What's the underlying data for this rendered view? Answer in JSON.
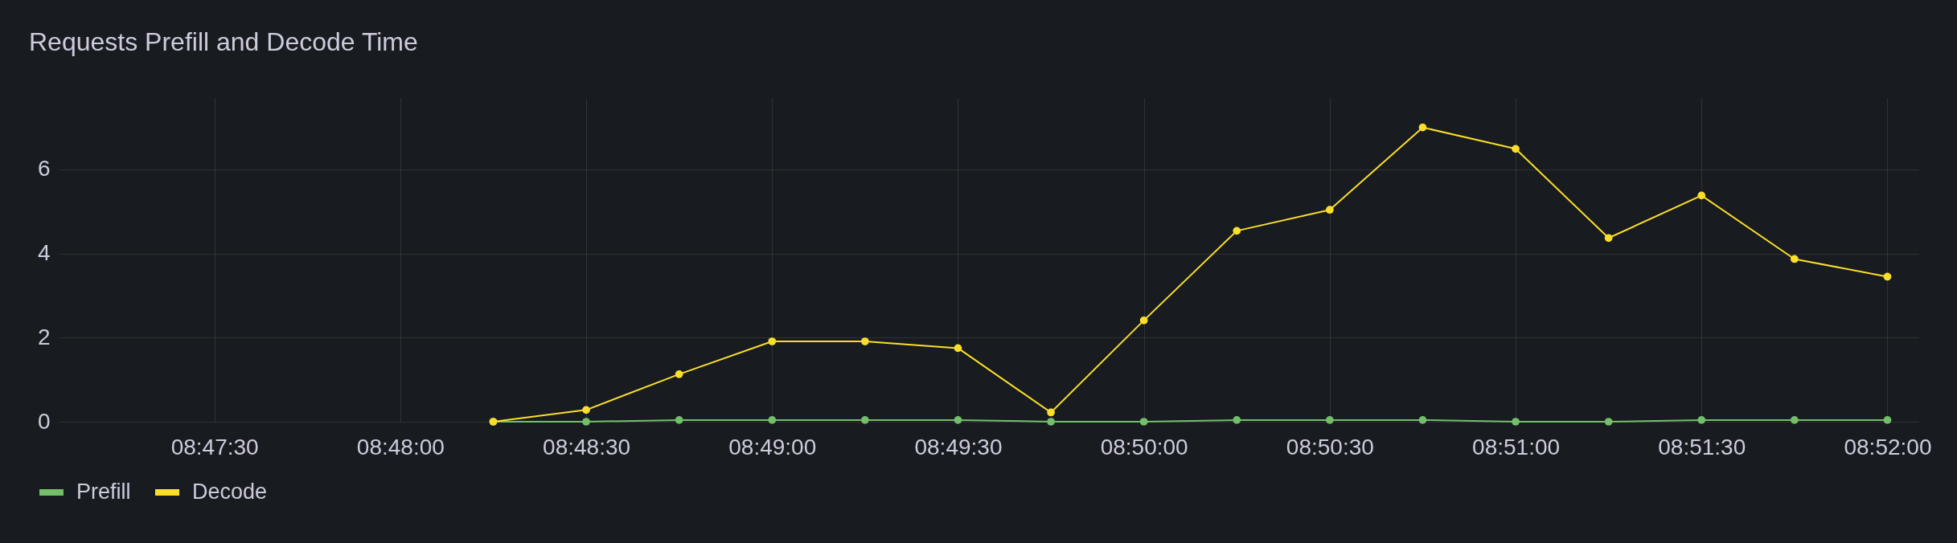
{
  "chart_data": {
    "type": "line",
    "title": "Requests Prefill and Decode Time",
    "x": [
      8.804167,
      8.808333,
      8.8125,
      8.816667,
      8.820833,
      8.825,
      8.829167,
      8.833333,
      8.8375,
      8.841667,
      8.845833,
      8.85,
      8.854167,
      8.858333,
      8.8625,
      8.866667
    ],
    "series": [
      {
        "name": "Prefill",
        "color": "#73bf69",
        "values": [
          0,
          0,
          0.04,
          0.04,
          0.04,
          0.04,
          0,
          0,
          0.04,
          0.04,
          0.04,
          0,
          0,
          0.04,
          0.04,
          0.04
        ]
      },
      {
        "name": "Decode",
        "color": "#fade2a",
        "values": [
          0,
          0.28,
          1.13,
          1.91,
          1.91,
          1.75,
          0.22,
          2.41,
          4.54,
          5.04,
          7.0,
          6.49,
          4.37,
          5.38,
          3.87,
          3.45
        ]
      }
    ],
    "xlim": [
      8.784722,
      8.868056
    ],
    "xticks": [
      {
        "value": 8.791667,
        "label": "08:47:30"
      },
      {
        "value": 8.8,
        "label": "08:48:00"
      },
      {
        "value": 8.808333,
        "label": "08:48:30"
      },
      {
        "value": 8.816667,
        "label": "08:49:00"
      },
      {
        "value": 8.825,
        "label": "08:49:30"
      },
      {
        "value": 8.833333,
        "label": "08:50:00"
      },
      {
        "value": 8.841667,
        "label": "08:50:30"
      },
      {
        "value": 8.85,
        "label": "08:51:00"
      },
      {
        "value": 8.858333,
        "label": "08:51:30"
      },
      {
        "value": 8.866667,
        "label": "08:52:00"
      }
    ],
    "ylim": [
      0,
      7.7
    ],
    "yticks": [
      0,
      2,
      4,
      6
    ],
    "grid": true,
    "legend": "bottom left",
    "marker": "circle",
    "line_style": "solid"
  }
}
